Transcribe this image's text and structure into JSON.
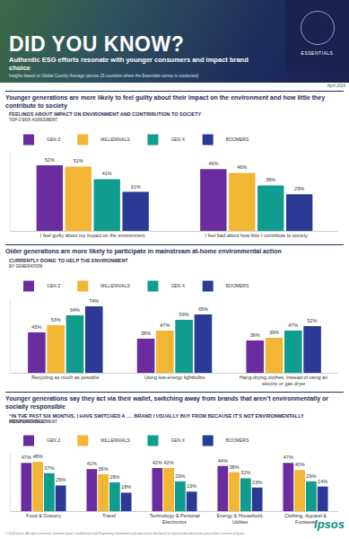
{
  "header": {
    "title": "DID YOU KNOW?",
    "subtitle": "Authentic ESG efforts resonate with younger consumers and impact brand choice",
    "note": "Insights based on Global Country Average (across 15 countries where the Essentials survey is conducted)",
    "badge": "ESSENTIALS",
    "date": "April 2024"
  },
  "sections": [
    "Younger generations are more likely to feel guilty about their impact on the environment and how little they contribute to society",
    "Older generations are more likely to participate in mainstream at-home environmental action",
    "Younger generations say they act via their wallet, switching away from brands that aren’t environmentally or socially responsible"
  ],
  "chart_data": [
    {
      "type": "bar",
      "title": "FEELINGS ABOUT IMPACT ON ENVIRONMENT AND CONTRIBUTION TO SOCIETY",
      "subtitle": "TOP-2 BOX AGREEMENT",
      "categories": [
        "I feel guilty about my impact on the environment",
        "I feel bad about how little I contribute to society"
      ],
      "series": [
        {
          "name": "GEN Z",
          "color": "#6a2c9e",
          "values": [
            52,
            49
          ],
          "value_labels": [
            "52%",
            "49%"
          ]
        },
        {
          "name": "MILLENNIALS",
          "color": "#f2b534",
          "values": [
            51,
            46
          ],
          "value_labels": [
            "51%",
            "46%"
          ]
        },
        {
          "name": "GEN X",
          "color": "#109c8f",
          "values": [
            41,
            36
          ],
          "value_labels": [
            "41%",
            "36%"
          ]
        },
        {
          "name": "BOOMERS",
          "color": "#2b3b95",
          "values": [
            31,
            29
          ],
          "value_labels": [
            "31%",
            "29%"
          ]
        }
      ],
      "ylim": [
        0,
        62
      ],
      "tick_labels": "x",
      "data_labels": true,
      "legend": "top left",
      "grid": false,
      "stacked": false
    },
    {
      "type": "bar",
      "title": "CURRENTLY DOING TO HELP THE ENVIRONMENT",
      "subtitle": "BY GENERATION",
      "categories": [
        "Recycling as much as possible",
        "Using low-energy lightbulbs",
        "Hang-drying clothes, instead of using an electric or gas dryer"
      ],
      "series": [
        {
          "name": "GEN Z",
          "color": "#6a2c9e",
          "values": [
            45,
            38,
            36
          ],
          "value_labels": [
            "45%",
            "38%",
            "36%"
          ]
        },
        {
          "name": "MILLENNIALS",
          "color": "#f2b534",
          "values": [
            53,
            47,
            39
          ],
          "value_labels": [
            "53%",
            "47%",
            "39%"
          ]
        },
        {
          "name": "GEN X",
          "color": "#109c8f",
          "values": [
            64,
            59,
            47
          ],
          "value_labels": [
            "64%",
            "59%",
            "47%"
          ]
        },
        {
          "name": "BOOMERS",
          "color": "#2b3b95",
          "values": [
            74,
            65,
            52
          ],
          "value_labels": [
            "74%",
            "65%",
            "52%"
          ]
        }
      ],
      "ylim": [
        0,
        82
      ],
      "tick_labels": "x",
      "data_labels": true,
      "legend": "top left",
      "grid": false,
      "stacked": false
    },
    {
      "type": "bar",
      "title": "“IN THE PAST SIX MONTHS, I HAVE SWITCHED A …. BRAND I USUALLY BUY FROM BECAUSE IT’S NOT ENVIRONMENTALLY RESPONSIBLE”",
      "subtitle": "TOP-2 BOX AGREEMENT",
      "categories": [
        "Food & Grocery",
        "Travel",
        "Technology & Personal Electronics",
        "Energy & Household, Utilities",
        "Clothing, Apparel & Footwear"
      ],
      "series": [
        {
          "name": "GEN Z",
          "color": "#6a2c9e",
          "values": [
            47,
            41,
            42,
            44,
            47
          ],
          "value_labels": [
            "47%",
            "41%",
            "42%",
            "44%",
            "47%"
          ]
        },
        {
          "name": "MILLENNIALS",
          "color": "#f2b534",
          "values": [
            48,
            36,
            42,
            38,
            40
          ],
          "value_labels": [
            "48%",
            "36%",
            "42%",
            "38%",
            "40%"
          ]
        },
        {
          "name": "GEN X",
          "color": "#109c8f",
          "values": [
            37,
            28,
            29,
            32,
            29
          ],
          "value_labels": [
            "37%",
            "28%",
            "29%",
            "32%",
            "29%"
          ]
        },
        {
          "name": "BOOMERS",
          "color": "#2b3b95",
          "values": [
            25,
            18,
            19,
            23,
            24
          ],
          "value_labels": [
            "25%",
            "18%",
            "19%",
            "23%",
            "24%"
          ]
        }
      ],
      "ylim": [
        0,
        56
      ],
      "tick_labels": "x",
      "data_labels": true,
      "legend": "top left",
      "grid": false,
      "stacked": false
    }
  ],
  "footer": {
    "copyright": "© 2024 Ipsos. All rights reserved. Contains Ipsos' Confidential and Proprietary information and may not be disclosed or reproduced without the prior written consent of Ipsos.",
    "logo": "Ipsos"
  }
}
